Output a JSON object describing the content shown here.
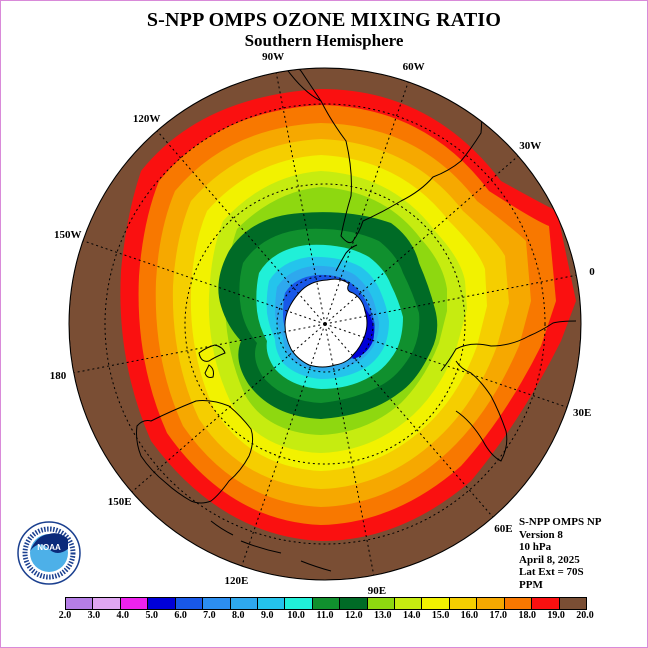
{
  "title": "S-NPP OMPS OZONE MIXING RATIO",
  "subtitle": "Southern Hemisphere",
  "longitude_labels": [
    "90W",
    "60W",
    "30W",
    "0",
    "30E",
    "60E",
    "90E",
    "120E",
    "150E",
    "180",
    "150W",
    "120W"
  ],
  "info": {
    "instrument": "S-NPP OMPS NP",
    "version": "Version 8",
    "level": "10 hPa",
    "date": "April 8, 2025",
    "lat_ext": "Lat Ext = 70S",
    "units": "PPM"
  },
  "logo": {
    "icon": "noaa-logo-icon",
    "text": "NOAA"
  },
  "colorbar": {
    "labels": [
      "2.0",
      "3.0",
      "4.0",
      "5.0",
      "6.0",
      "7.0",
      "8.0",
      "9.0",
      "10.0",
      "11.0",
      "12.0",
      "13.0",
      "14.0",
      "15.0",
      "16.0",
      "17.0",
      "18.0",
      "19.0",
      "20.0"
    ],
    "colors": [
      "#b57ee6",
      "#e0a6f2",
      "#ee22ee",
      "#0000d8",
      "#1858e8",
      "#2c8ef0",
      "#2ea8ee",
      "#24c4ec",
      "#20f0d8",
      "#10902e",
      "#006b26",
      "#8ed810",
      "#c6ec10",
      "#f2f200",
      "#f5ce00",
      "#f6a800",
      "#f87800",
      "#fa1010",
      "#7a4e34"
    ]
  },
  "map": {
    "background_color": "#7a4e34",
    "pole_color": "#ffffff"
  }
}
